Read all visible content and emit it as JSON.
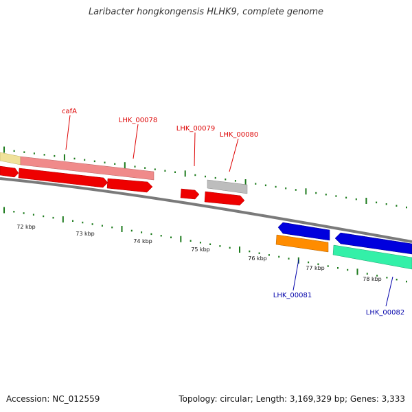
{
  "title": "Laribacter hongkongensis HLHK9, complete genome",
  "footer": {
    "accession": "Accession: NC_012559",
    "summary": "Topology: circular; Length: 3,169,329 bp; Genes: 3,333"
  },
  "colors": {
    "background": "#ffffff",
    "backbone": "#888888",
    "tick": "#1b7a1b",
    "top_label": "#dd0000",
    "bottom_label": "#0000aa"
  },
  "scale_labels": [
    "72 kbp",
    "73 kbp",
    "74 kbp",
    "75 kbp",
    "76 kbp",
    "77 kbp",
    "78 kbp"
  ],
  "gene_labels_top": [
    "cafA",
    "LHK_00078",
    "LHK_00079",
    "LHK_00080"
  ],
  "gene_labels_bottom": [
    "LHK_00081",
    "LHK_00082"
  ],
  "feature_colors": {
    "pale_yellow": "#f0e29a",
    "salmon": "#f08a8a",
    "red": "#ee0000",
    "gray": "#bdbdbd",
    "blue": "#0000dd",
    "orange": "#ff8c00",
    "aquamarine": "#33f0a8"
  }
}
